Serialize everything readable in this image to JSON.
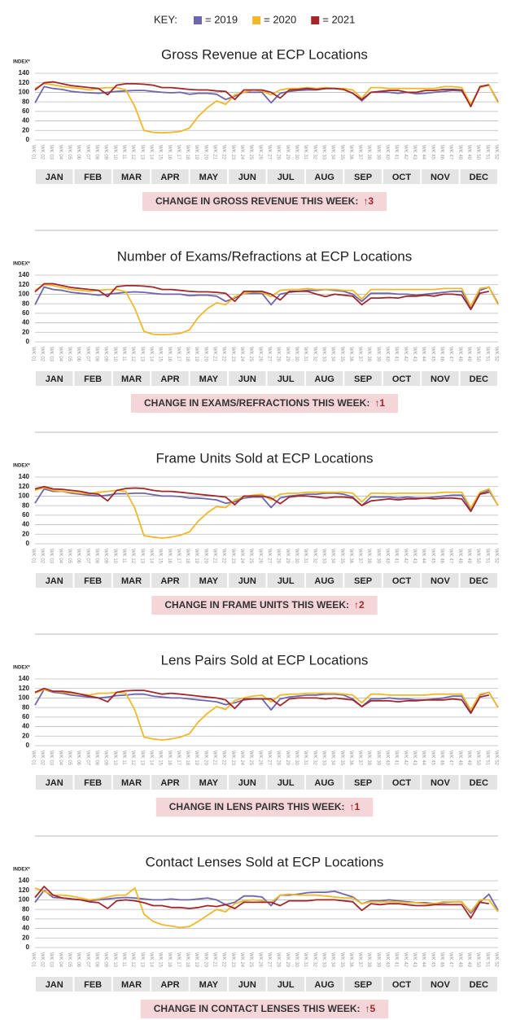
{
  "key": {
    "label": "KEY:",
    "entries": [
      {
        "text": "= 2019",
        "color": "#6e66aa"
      },
      {
        "text": "= 2020",
        "color": "#f0b82a"
      },
      {
        "text": "= 2021",
        "color": "#a3262a"
      }
    ]
  },
  "weeks": [
    "WK 01",
    "WK 02",
    "WK 03",
    "WK 04",
    "WK 05",
    "WK 06",
    "WK 07",
    "WK 08",
    "WK 09",
    "WK 10",
    "WK 11",
    "WK 12",
    "WK 13",
    "WK 14",
    "WK 15",
    "WK 16",
    "WK 17",
    "WK 18",
    "WK 19",
    "WK 20",
    "WK 21",
    "WK 22",
    "WK 23",
    "WK 24",
    "WK 25",
    "WK 26",
    "WK 27",
    "WK 28",
    "WK 29",
    "WK 30",
    "WK 31",
    "WK 32",
    "WK 33",
    "WK 34",
    "WK 35",
    "WK 36",
    "WK 37",
    "WK 38",
    "WK 39",
    "WK 40",
    "WK 41",
    "WK 42",
    "WK 43",
    "WK 44",
    "WK 45",
    "WK 46",
    "WK 47",
    "WK 48",
    "WK 49",
    "WK 50",
    "WK 51",
    "WK 52"
  ],
  "months": [
    "JAN",
    "FEB",
    "MAR",
    "APR",
    "MAY",
    "JUN",
    "JUL",
    "AUG",
    "SEP",
    "OCT",
    "NOV",
    "DEC"
  ],
  "chart_data": [
    {
      "type": "line",
      "title": "Gross Revenue at ECP Locations",
      "y_label": "INDEX*",
      "ylim": [
        0,
        140
      ],
      "yticks": [
        0,
        20,
        40,
        60,
        80,
        100,
        120,
        140
      ],
      "grid": true,
      "series": [
        {
          "values": [
            78,
            112,
            108,
            106,
            102,
            100,
            99,
            98,
            100,
            102,
            103,
            104,
            104,
            102,
            100,
            99,
            100,
            96,
            98,
            98,
            96,
            85,
            92,
            100,
            100,
            100,
            78,
            98,
            102,
            104,
            105,
            105,
            108,
            108,
            106,
            98,
            82,
            100,
            100,
            100,
            98,
            100,
            97,
            98,
            100,
            102,
            104,
            103,
            72,
            110,
            115,
            80
          ]
        },
        {
          "values": [
            108,
            118,
            116,
            112,
            110,
            108,
            105,
            108,
            110,
            110,
            105,
            70,
            20,
            16,
            15,
            16,
            18,
            25,
            50,
            68,
            82,
            75,
            95,
            100,
            105,
            103,
            95,
            105,
            108,
            108,
            110,
            108,
            110,
            108,
            108,
            105,
            88,
            110,
            110,
            108,
            108,
            108,
            108,
            108,
            108,
            112,
            112,
            110,
            75,
            110,
            115,
            78
          ]
        },
        {
          "values": [
            105,
            120,
            122,
            118,
            114,
            112,
            110,
            108,
            95,
            115,
            118,
            118,
            117,
            115,
            110,
            110,
            108,
            106,
            105,
            105,
            103,
            102,
            85,
            105,
            105,
            105,
            100,
            88,
            105,
            106,
            108,
            106,
            108,
            108,
            106,
            98,
            85,
            100,
            102,
            104,
            104,
            100,
            100,
            104,
            104,
            106,
            106,
            105,
            70,
            112,
            116,
            null
          ]
        }
      ],
      "banner": {
        "text": "CHANGE IN GROSS REVENUE THIS WEEK:",
        "change": "↑3"
      }
    },
    {
      "type": "line",
      "title": "Number of Exams/Refractions at ECP Locations",
      "y_label": "INDEX*",
      "ylim": [
        0,
        140
      ],
      "yticks": [
        0,
        20,
        40,
        60,
        80,
        100,
        120,
        140
      ],
      "grid": true,
      "series": [
        {
          "values": [
            78,
            115,
            110,
            108,
            104,
            102,
            100,
            98,
            100,
            102,
            104,
            105,
            104,
            102,
            100,
            100,
            100,
            97,
            98,
            98,
            96,
            85,
            92,
            102,
            102,
            102,
            78,
            100,
            104,
            106,
            108,
            108,
            110,
            108,
            106,
            100,
            85,
            102,
            102,
            102,
            100,
            100,
            98,
            100,
            102,
            104,
            106,
            106,
            72,
            108,
            115,
            80
          ]
        },
        {
          "values": [
            108,
            120,
            118,
            114,
            110,
            108,
            106,
            108,
            110,
            110,
            105,
            70,
            22,
            16,
            15,
            16,
            18,
            25,
            52,
            70,
            82,
            78,
            95,
            102,
            105,
            104,
            95,
            108,
            110,
            110,
            112,
            110,
            110,
            110,
            108,
            108,
            90,
            110,
            110,
            110,
            110,
            110,
            110,
            110,
            110,
            112,
            112,
            112,
            75,
            112,
            115,
            78
          ]
        },
        {
          "values": [
            105,
            122,
            122,
            118,
            114,
            112,
            110,
            108,
            95,
            116,
            118,
            118,
            117,
            115,
            110,
            110,
            108,
            106,
            105,
            105,
            104,
            102,
            85,
            106,
            106,
            106,
            100,
            88,
            106,
            106,
            106,
            100,
            95,
            100,
            98,
            96,
            78,
            92,
            92,
            93,
            92,
            96,
            96,
            98,
            96,
            100,
            100,
            98,
            68,
            102,
            106,
            null
          ]
        }
      ],
      "banner": {
        "text": "CHANGE IN EXAMS/REFRACTIONS THIS WEEK:",
        "change": "↑1"
      }
    },
    {
      "type": "line",
      "title": "Frame Units Sold at ECP Locations",
      "y_label": "INDEX*",
      "ylim": [
        0,
        140
      ],
      "yticks": [
        0,
        20,
        40,
        60,
        80,
        100,
        120,
        140
      ],
      "grid": true,
      "series": [
        {
          "values": [
            85,
            115,
            110,
            110,
            106,
            104,
            102,
            100,
            102,
            105,
            105,
            106,
            106,
            103,
            100,
            100,
            99,
            96,
            96,
            94,
            92,
            85,
            88,
            96,
            98,
            98,
            76,
            96,
            100,
            102,
            104,
            104,
            106,
            106,
            104,
            98,
            80,
            98,
            98,
            98,
            96,
            98,
            96,
            96,
            98,
            100,
            102,
            102,
            72,
            106,
            112,
            80
          ]
        },
        {
          "values": [
            112,
            118,
            112,
            110,
            108,
            106,
            105,
            108,
            110,
            112,
            110,
            75,
            17,
            14,
            12,
            14,
            18,
            25,
            48,
            65,
            78,
            76,
            92,
            98,
            102,
            104,
            92,
            104,
            106,
            106,
            108,
            108,
            108,
            108,
            108,
            106,
            88,
            106,
            106,
            105,
            106,
            106,
            106,
            106,
            106,
            108,
            108,
            108,
            75,
            108,
            115,
            80
          ]
        },
        {
          "values": [
            115,
            120,
            115,
            114,
            112,
            110,
            106,
            104,
            90,
            112,
            116,
            117,
            116,
            112,
            110,
            110,
            108,
            106,
            104,
            102,
            100,
            98,
            82,
            100,
            100,
            100,
            96,
            84,
            98,
            100,
            100,
            98,
            96,
            98,
            98,
            96,
            80,
            90,
            92,
            94,
            92,
            94,
            94,
            96,
            94,
            96,
            96,
            94,
            68,
            104,
            108,
            null
          ]
        }
      ],
      "banner": {
        "text": "CHANGE IN FRAME UNITS THIS WEEK:",
        "change": "↑2"
      }
    },
    {
      "type": "line",
      "title": "Lens Pairs Sold at ECP Locations",
      "y_label": "INDEX*",
      "ylim": [
        0,
        140
      ],
      "yticks": [
        0,
        20,
        40,
        60,
        80,
        100,
        120,
        140
      ],
      "grid": true,
      "series": [
        {
          "values": [
            85,
            118,
            112,
            110,
            106,
            104,
            102,
            100,
            102,
            105,
            106,
            108,
            108,
            104,
            102,
            100,
            100,
            98,
            96,
            94,
            92,
            86,
            90,
            96,
            98,
            98,
            75,
            98,
            102,
            104,
            106,
            106,
            108,
            108,
            106,
            98,
            82,
            98,
            98,
            100,
            98,
            98,
            96,
            96,
            98,
            100,
            104,
            104,
            72,
            106,
            112,
            80
          ]
        },
        {
          "values": [
            110,
            118,
            114,
            112,
            110,
            108,
            106,
            110,
            110,
            112,
            110,
            75,
            18,
            14,
            12,
            14,
            18,
            25,
            50,
            68,
            82,
            76,
            95,
            100,
            104,
            106,
            92,
            106,
            108,
            108,
            110,
            110,
            110,
            110,
            108,
            106,
            90,
            108,
            108,
            106,
            106,
            106,
            106,
            106,
            108,
            108,
            108,
            108,
            75,
            108,
            112,
            80
          ]
        },
        {
          "values": [
            112,
            120,
            114,
            114,
            112,
            108,
            104,
            100,
            92,
            112,
            115,
            116,
            116,
            112,
            108,
            110,
            108,
            106,
            104,
            102,
            100,
            96,
            78,
            98,
            98,
            98,
            98,
            84,
            98,
            100,
            100,
            100,
            98,
            100,
            98,
            96,
            82,
            94,
            94,
            94,
            92,
            94,
            94,
            96,
            96,
            96,
            98,
            96,
            68,
            102,
            106,
            null
          ]
        }
      ],
      "banner": {
        "text": "CHANGE IN LENS PAIRS THIS WEEK:",
        "change": "↑1"
      }
    },
    {
      "type": "line",
      "title": "Contact Lenses Sold at ECP Locations",
      "y_label": "INDEX*",
      "ylim": [
        0,
        140
      ],
      "yticks": [
        0,
        20,
        40,
        60,
        80,
        100,
        120,
        140
      ],
      "grid": true,
      "series": [
        {
          "values": [
            95,
            120,
            105,
            104,
            102,
            100,
            98,
            100,
            102,
            104,
            105,
            104,
            102,
            100,
            100,
            102,
            100,
            100,
            102,
            104,
            100,
            90,
            95,
            108,
            108,
            106,
            88,
            110,
            110,
            112,
            115,
            116,
            116,
            118,
            112,
            106,
            92,
            98,
            98,
            100,
            98,
            96,
            94,
            94,
            92,
            94,
            96,
            96,
            72,
            95,
            112,
            78
          ]
        },
        {
          "values": [
            125,
            118,
            110,
            110,
            108,
            104,
            100,
            102,
            106,
            110,
            110,
            125,
            70,
            55,
            48,
            45,
            42,
            44,
            55,
            68,
            80,
            75,
            92,
            98,
            100,
            98,
            94,
            110,
            112,
            110,
            110,
            110,
            108,
            106,
            104,
            104,
            92,
            96,
            96,
            96,
            96,
            94,
            94,
            92,
            92,
            96,
            96,
            96,
            75,
            100,
            100,
            75
          ]
        },
        {
          "values": [
            105,
            128,
            110,
            104,
            102,
            100,
            96,
            94,
            82,
            98,
            100,
            98,
            94,
            88,
            88,
            84,
            84,
            82,
            84,
            88,
            86,
            90,
            82,
            95,
            95,
            95,
            95,
            88,
            98,
            98,
            98,
            100,
            100,
            100,
            98,
            96,
            78,
            92,
            90,
            92,
            92,
            90,
            88,
            88,
            90,
            90,
            90,
            90,
            62,
            95,
            92,
            null
          ]
        }
      ],
      "banner": {
        "text": "CHANGE IN CONTACT LENSES THIS WEEK:",
        "change": "↑5"
      }
    }
  ]
}
